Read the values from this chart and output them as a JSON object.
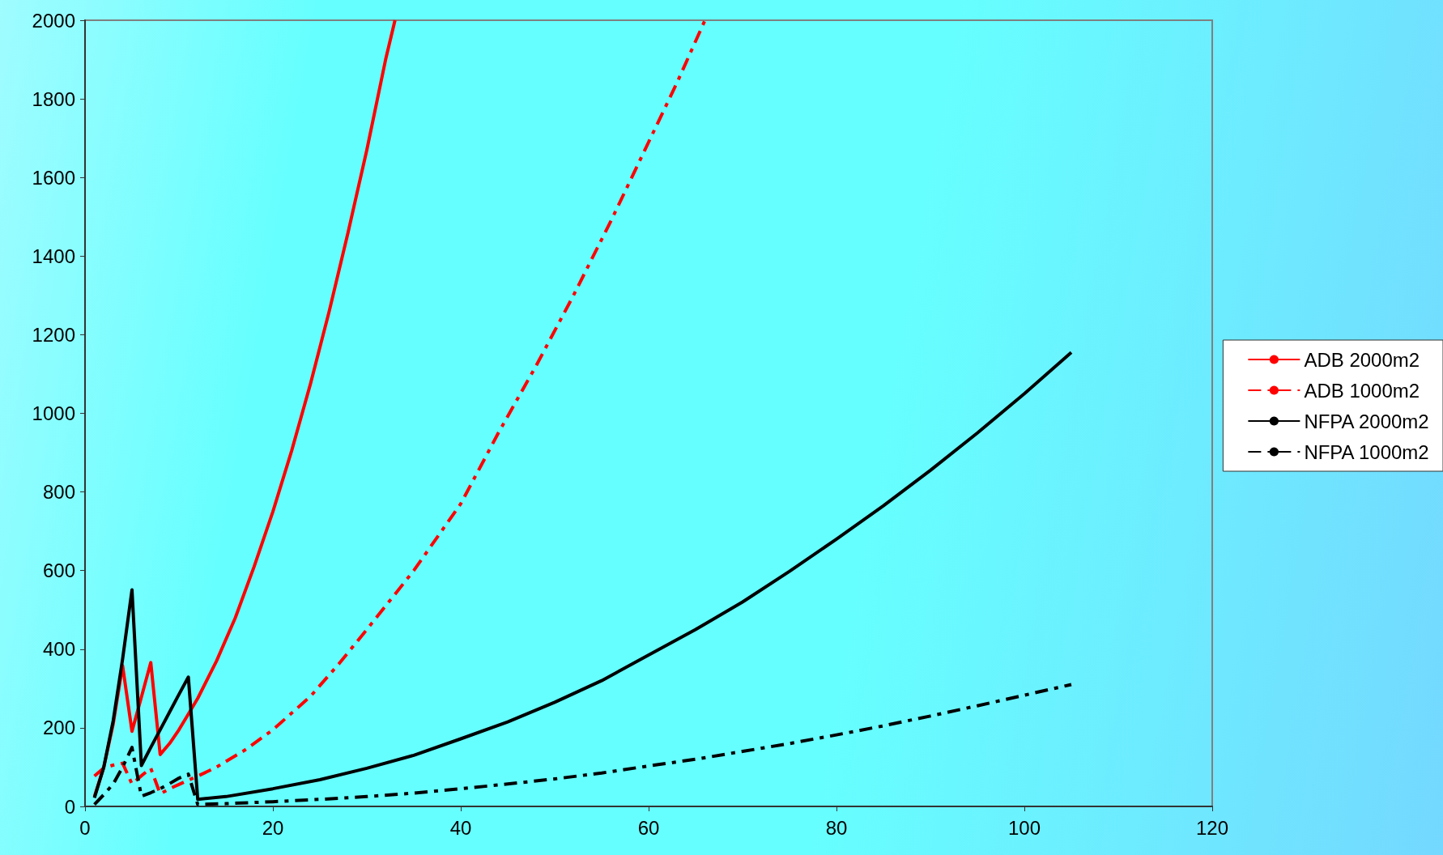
{
  "chart_data": {
    "type": "line",
    "xlim": [
      0,
      120
    ],
    "xticks": [
      0,
      20,
      40,
      60,
      80,
      100,
      120
    ],
    "ylim": [
      0,
      2000
    ],
    "yticks": [
      0,
      200,
      400,
      600,
      800,
      1000,
      1200,
      1400,
      1600,
      1800,
      2000
    ],
    "grid": false,
    "legend": "right",
    "marker": "none",
    "series": [
      {
        "name": "ADB 2000m2",
        "color": "#ff0000",
        "line_style": "solid",
        "x": [
          1,
          2,
          3,
          4,
          5,
          6,
          7,
          8,
          9,
          10,
          11,
          12,
          14,
          16,
          18,
          20,
          22,
          24,
          26,
          28,
          30,
          32,
          33
        ],
        "values": [
          25,
          100,
          210,
          358,
          191,
          278,
          366,
          132,
          160,
          195,
          235,
          275,
          370,
          480,
          610,
          750,
          905,
          1075,
          1260,
          1460,
          1670,
          1900,
          2000
        ]
      },
      {
        "name": "ADB 1000m2",
        "color": "#ff0000",
        "line_style": "dashed",
        "x": [
          1,
          2,
          3,
          4,
          5,
          6,
          7,
          8,
          9,
          10,
          11,
          12,
          14,
          17,
          20,
          24,
          27,
          30,
          35,
          40,
          44,
          48,
          52,
          56,
          60,
          63,
          66
        ],
        "values": [
          77,
          98,
          105,
          110,
          57,
          78,
          97,
          32,
          45,
          56,
          67,
          77,
          100,
          143,
          195,
          280,
          362,
          450,
          600,
          770,
          950,
          1120,
          1300,
          1490,
          1690,
          1840,
          2000
        ]
      },
      {
        "name": "NFPA 2000m2",
        "color": "#000000",
        "line_style": "solid",
        "x": [
          1,
          2,
          3,
          4,
          5,
          6,
          7,
          8,
          9,
          10,
          11,
          12,
          15,
          20,
          25,
          30,
          35,
          40,
          45,
          50,
          55,
          60,
          65,
          70,
          75,
          80,
          85,
          90,
          95,
          100,
          105
        ],
        "values": [
          22,
          100,
          218,
          375,
          551,
          104,
          150,
          195,
          240,
          285,
          329,
          18,
          25,
          45,
          68,
          97,
          130,
          172,
          215,
          265,
          320,
          385,
          450,
          520,
          598,
          680,
          765,
          855,
          950,
          1050,
          1155
        ]
      },
      {
        "name": "NFPA 1000m2",
        "color": "#000000",
        "line_style": "dashed",
        "x": [
          1,
          2,
          3,
          4,
          5,
          6,
          7,
          8,
          9,
          10,
          11,
          12,
          15,
          20,
          25,
          30,
          35,
          40,
          45,
          50,
          55,
          60,
          65,
          70,
          75,
          80,
          85,
          90,
          95,
          100,
          105
        ],
        "values": [
          5,
          30,
          57,
          100,
          150,
          26,
          35,
          45,
          58,
          72,
          82,
          5,
          7,
          12,
          18,
          25,
          34,
          45,
          57,
          70,
          85,
          103,
          120,
          140,
          160,
          182,
          205,
          230,
          256,
          283,
          310
        ]
      }
    ]
  }
}
